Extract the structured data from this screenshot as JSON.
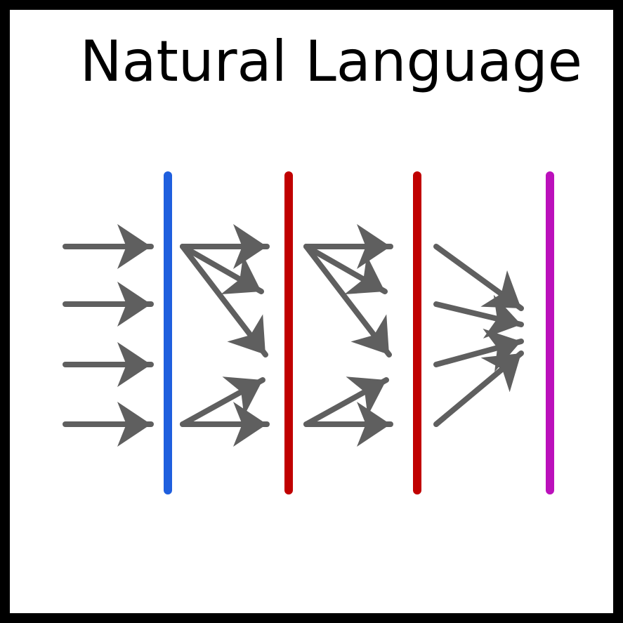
{
  "title": "Natural Language",
  "colors": {
    "frame": "#000000",
    "background": "#ffffff",
    "arrow": "#5f5f5f",
    "bar_input": "#1f5fde",
    "bar_hidden": "#c00000",
    "bar_output": "#bb10bb"
  },
  "bars": [
    "input",
    "hidden",
    "hidden",
    "output"
  ]
}
